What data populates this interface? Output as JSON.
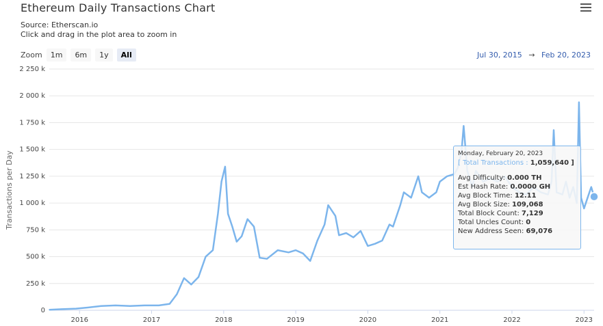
{
  "header": {
    "title": "Ethereum Daily Transactions Chart",
    "source": "Source: Etherscan.io",
    "hint": "Click and drag in the plot area to zoom in"
  },
  "zoom": {
    "label": "Zoom",
    "buttons": [
      "1m",
      "6m",
      "1y",
      "All"
    ],
    "active": "All"
  },
  "range": {
    "from": "Jul 30, 2015",
    "arrow": "→",
    "to": "Feb 20, 2023"
  },
  "tooltip": {
    "date": "Monday, February 20, 2023",
    "series_open": "[",
    "series_name": "Total Transactions",
    "series_sep": ":",
    "series_value": "1,059,640",
    "series_close": "]",
    "rows": [
      {
        "label": "Avg Difficulty:",
        "value": "0.000 TH"
      },
      {
        "label": "Est Hash Rate:",
        "value": "0.0000 GH"
      },
      {
        "label": "Avg Block Time:",
        "value": "12.11"
      },
      {
        "label": "Avg Block Size:",
        "value": "109,068"
      },
      {
        "label": "Total Block Count:",
        "value": "7,129"
      },
      {
        "label": "Total Uncles Count:",
        "value": "0"
      },
      {
        "label": "New Address Seen:",
        "value": "69,076"
      }
    ]
  },
  "chart_data": {
    "type": "line",
    "title": "Ethereum Daily Transactions Chart",
    "ylabel": "Transactions per Day",
    "xlabel": "",
    "ylim": [
      0,
      2250000
    ],
    "xlim": [
      2015.58,
      2023.14
    ],
    "yticks": [
      0,
      250000,
      500000,
      750000,
      1000000,
      1250000,
      1500000,
      1750000,
      2000000,
      2250000
    ],
    "ytick_labels": [
      "0",
      "250 k",
      "500 k",
      "750 k",
      "1 000 k",
      "1 250 k",
      "1 500 k",
      "1 750 k",
      "2 000 k",
      "2 250 k"
    ],
    "xticks": [
      2016,
      2017,
      2018,
      2019,
      2020,
      2021,
      2022,
      2023
    ],
    "xtick_labels": [
      "2016",
      "2017",
      "2018",
      "2019",
      "2020",
      "2021",
      "2022",
      "2023"
    ],
    "grid": true,
    "color": "#7cb5ec",
    "series": [
      {
        "name": "Total Transactions",
        "points": [
          [
            2015.58,
            5000
          ],
          [
            2015.75,
            10000
          ],
          [
            2015.95,
            15000
          ],
          [
            2016.1,
            25000
          ],
          [
            2016.3,
            40000
          ],
          [
            2016.5,
            45000
          ],
          [
            2016.7,
            40000
          ],
          [
            2016.9,
            45000
          ],
          [
            2017.1,
            45000
          ],
          [
            2017.25,
            60000
          ],
          [
            2017.35,
            150000
          ],
          [
            2017.45,
            300000
          ],
          [
            2017.55,
            240000
          ],
          [
            2017.65,
            310000
          ],
          [
            2017.75,
            500000
          ],
          [
            2017.85,
            560000
          ],
          [
            2017.92,
            900000
          ],
          [
            2017.97,
            1200000
          ],
          [
            2018.02,
            1340000
          ],
          [
            2018.06,
            900000
          ],
          [
            2018.12,
            780000
          ],
          [
            2018.18,
            640000
          ],
          [
            2018.25,
            690000
          ],
          [
            2018.33,
            850000
          ],
          [
            2018.42,
            780000
          ],
          [
            2018.5,
            490000
          ],
          [
            2018.6,
            480000
          ],
          [
            2018.75,
            560000
          ],
          [
            2018.9,
            540000
          ],
          [
            2019.0,
            560000
          ],
          [
            2019.1,
            530000
          ],
          [
            2019.2,
            460000
          ],
          [
            2019.3,
            650000
          ],
          [
            2019.4,
            800000
          ],
          [
            2019.45,
            980000
          ],
          [
            2019.55,
            880000
          ],
          [
            2019.6,
            700000
          ],
          [
            2019.7,
            720000
          ],
          [
            2019.8,
            680000
          ],
          [
            2019.9,
            740000
          ],
          [
            2020.0,
            600000
          ],
          [
            2020.1,
            620000
          ],
          [
            2020.2,
            650000
          ],
          [
            2020.3,
            800000
          ],
          [
            2020.35,
            780000
          ],
          [
            2020.45,
            980000
          ],
          [
            2020.5,
            1100000
          ],
          [
            2020.6,
            1050000
          ],
          [
            2020.7,
            1250000
          ],
          [
            2020.75,
            1100000
          ],
          [
            2020.85,
            1050000
          ],
          [
            2020.95,
            1100000
          ],
          [
            2021.0,
            1200000
          ],
          [
            2021.1,
            1250000
          ],
          [
            2021.2,
            1270000
          ],
          [
            2021.25,
            1330000
          ],
          [
            2021.3,
            1480000
          ],
          [
            2021.33,
            1720000
          ],
          [
            2021.38,
            1300000
          ],
          [
            2021.45,
            1150000
          ],
          [
            2021.5,
            1300000
          ],
          [
            2021.6,
            1200000
          ],
          [
            2021.7,
            1230000
          ],
          [
            2021.8,
            1200000
          ],
          [
            2021.9,
            1250000
          ],
          [
            2022.0,
            1150000
          ],
          [
            2022.1,
            1100000
          ],
          [
            2022.2,
            1080000
          ],
          [
            2022.3,
            1150000
          ],
          [
            2022.4,
            1100000
          ],
          [
            2022.5,
            1080000
          ],
          [
            2022.55,
            1200000
          ],
          [
            2022.58,
            1680000
          ],
          [
            2022.62,
            1100000
          ],
          [
            2022.7,
            1080000
          ],
          [
            2022.75,
            1200000
          ],
          [
            2022.8,
            1050000
          ],
          [
            2022.85,
            1150000
          ],
          [
            2022.9,
            1000000
          ],
          [
            2022.93,
            1940000
          ],
          [
            2022.96,
            1050000
          ],
          [
            2023.0,
            950000
          ],
          [
            2023.05,
            1050000
          ],
          [
            2023.1,
            1150000
          ],
          [
            2023.14,
            1059640
          ]
        ]
      }
    ]
  }
}
